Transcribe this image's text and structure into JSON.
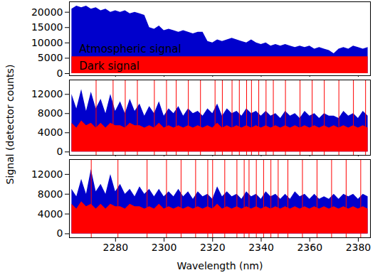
{
  "chart_data": [
    {
      "type": "area",
      "x": [
        2262,
        2264,
        2266,
        2268,
        2270,
        2272,
        2274,
        2276,
        2278,
        2280,
        2282,
        2284,
        2286,
        2288,
        2290,
        2292,
        2294,
        2296,
        2298,
        2300,
        2302,
        2304,
        2306,
        2308,
        2310,
        2312,
        2314,
        2316,
        2318,
        2320,
        2322,
        2324,
        2326,
        2328,
        2330,
        2332,
        2334,
        2336,
        2338,
        2340,
        2342,
        2344,
        2346,
        2348,
        2350,
        2352,
        2354,
        2356,
        2358,
        2360,
        2362,
        2364,
        2366,
        2368,
        2370,
        2372,
        2374,
        2376,
        2378,
        2380,
        2382,
        2384
      ],
      "series": [
        {
          "color": "#0000cc",
          "values": [
            21000,
            22000,
            21500,
            22000,
            21000,
            21500,
            20500,
            21000,
            20000,
            20500,
            20000,
            20500,
            19500,
            20000,
            19500,
            19000,
            15000,
            14500,
            15500,
            14000,
            14500,
            14000,
            13500,
            14000,
            13500,
            13000,
            13500,
            13500,
            10500,
            10000,
            11000,
            10500,
            11000,
            11500,
            11000,
            10500,
            10000,
            11000,
            10000,
            9500,
            10000,
            9000,
            9500,
            9000,
            9500,
            9000,
            8500,
            9000,
            8500,
            9000,
            8000,
            8500,
            8000,
            7500,
            6500,
            8000,
            8500,
            8000,
            9000,
            8500,
            8000,
            8500
          ]
        },
        {
          "color": "#ff0000",
          "values": [
            5500,
            5500,
            5500,
            5500,
            5500,
            5500,
            5500,
            5500,
            5500,
            5500,
            5500,
            5500,
            5500,
            5500,
            5500,
            5500,
            5500,
            5500,
            5500,
            5500,
            5500,
            5500,
            5500,
            5500,
            5500,
            5500,
            5500,
            5500,
            5500,
            5500,
            5500,
            5500,
            5500,
            5500,
            5500,
            5500,
            5500,
            5500,
            5500,
            5500,
            5500,
            5500,
            5500,
            5500,
            5500,
            5500,
            5500,
            5500,
            5500,
            5500,
            5500,
            5500,
            5500,
            5500,
            5500,
            5500,
            5500,
            5500,
            5500,
            5500,
            5500,
            5500
          ]
        }
      ],
      "annotations": [
        {
          "text": "Atmospheric signal",
          "x": 2265,
          "y": 8000
        },
        {
          "text": "Dark signal",
          "x": 2265,
          "y": 2500
        }
      ],
      "xlim": [
        2261,
        2385
      ],
      "xticks": [
        2280,
        2300,
        2320,
        2340,
        2360,
        2380
      ],
      "ylim": [
        -700,
        23400
      ],
      "yticks": [
        0,
        5000,
        10000,
        15000,
        20000
      ],
      "tick_labels": "y"
    },
    {
      "type": "area",
      "x": [
        2262,
        2264,
        2266,
        2268,
        2270,
        2272,
        2274,
        2276,
        2278,
        2280,
        2282,
        2284,
        2286,
        2288,
        2290,
        2292,
        2294,
        2296,
        2298,
        2300,
        2302,
        2304,
        2306,
        2308,
        2310,
        2312,
        2314,
        2316,
        2318,
        2320,
        2322,
        2324,
        2326,
        2328,
        2330,
        2332,
        2334,
        2336,
        2338,
        2340,
        2342,
        2344,
        2346,
        2348,
        2350,
        2352,
        2354,
        2356,
        2358,
        2360,
        2362,
        2364,
        2366,
        2368,
        2370,
        2372,
        2374,
        2376,
        2378,
        2380,
        2382,
        2384
      ],
      "series": [
        {
          "color": "#0000cc",
          "values": [
            12000,
            9000,
            13000,
            8500,
            12500,
            9000,
            11000,
            8000,
            12000,
            8500,
            10500,
            8000,
            11000,
            8500,
            10000,
            7500,
            9500,
            8000,
            10500,
            7500,
            9000,
            8000,
            9500,
            7500,
            9000,
            8000,
            8500,
            7500,
            9000,
            8000,
            10000,
            7500,
            9000,
            8000,
            8500,
            7500,
            9000,
            8000,
            8500,
            7500,
            8500,
            7500,
            8000,
            7000,
            8500,
            7500,
            8000,
            7000,
            8500,
            7500,
            8000,
            7000,
            8000,
            7500,
            7500,
            7000,
            8500,
            7500,
            8000,
            7000,
            8500,
            7500
          ]
        },
        {
          "color": "#ff0000",
          "values": [
            6000,
            5000,
            6500,
            5500,
            6000,
            5000,
            6000,
            5000,
            6000,
            5500,
            5500,
            5000,
            6000,
            5500,
            5500,
            5000,
            5500,
            5000,
            6000,
            5000,
            5500,
            5000,
            5500,
            5000,
            5500,
            5000,
            5500,
            5000,
            5500,
            5000,
            6000,
            5000,
            5500,
            5000,
            5500,
            5000,
            5500,
            5000,
            5500,
            5000,
            5500,
            5000,
            5500,
            5000,
            5500,
            5000,
            5500,
            5000,
            5500,
            5000,
            5500,
            5000,
            5500,
            5000,
            5500,
            5000,
            5500,
            5000,
            5500,
            5000,
            5500,
            5000
          ]
        }
      ],
      "vlines": [
        2272,
        2279,
        2284,
        2289,
        2296,
        2301,
        2305,
        2310,
        2315,
        2321,
        2324,
        2328,
        2331,
        2334,
        2336,
        2339,
        2342,
        2345,
        2350,
        2356,
        2361,
        2366,
        2372,
        2378,
        2383
      ],
      "vline_color": "#ff0000",
      "ylabel": "Signal (detector counts)",
      "xlim": [
        2261,
        2385
      ],
      "xticks": [
        2280,
        2300,
        2320,
        2340,
        2360,
        2380
      ],
      "ylim": [
        -700,
        15000
      ],
      "yticks": [
        0,
        4000,
        8000,
        12000
      ],
      "tick_labels": "y"
    },
    {
      "type": "area",
      "x": [
        2262,
        2264,
        2266,
        2268,
        2270,
        2272,
        2274,
        2276,
        2278,
        2280,
        2282,
        2284,
        2286,
        2288,
        2290,
        2292,
        2294,
        2296,
        2298,
        2300,
        2302,
        2304,
        2306,
        2308,
        2310,
        2312,
        2314,
        2316,
        2318,
        2320,
        2322,
        2324,
        2326,
        2328,
        2330,
        2332,
        2334,
        2336,
        2338,
        2340,
        2342,
        2344,
        2346,
        2348,
        2350,
        2352,
        2354,
        2356,
        2358,
        2360,
        2362,
        2364,
        2366,
        2368,
        2370,
        2372,
        2374,
        2376,
        2378,
        2380,
        2382,
        2384
      ],
      "series": [
        {
          "color": "#0000cc",
          "values": [
            9000,
            7500,
            11000,
            8000,
            13000,
            8500,
            10000,
            8000,
            12000,
            8500,
            10000,
            8000,
            9000,
            7500,
            9500,
            8000,
            9000,
            7500,
            9000,
            7500,
            8500,
            7500,
            9000,
            7500,
            8500,
            7000,
            8500,
            7500,
            8000,
            7000,
            9500,
            7500,
            8500,
            7500,
            8000,
            7000,
            8500,
            7500,
            8000,
            7000,
            8500,
            7500,
            8000,
            7000,
            8000,
            7000,
            8500,
            7500,
            8000,
            7000,
            8000,
            7000,
            7500,
            7000,
            8000,
            7000,
            8000,
            7500,
            8000,
            7000,
            8000,
            7500
          ]
        },
        {
          "color": "#ff0000",
          "values": [
            6000,
            5000,
            6500,
            5500,
            6000,
            5000,
            6000,
            5000,
            6000,
            5500,
            5500,
            5000,
            6000,
            5500,
            5500,
            5000,
            5500,
            5000,
            6000,
            5000,
            5500,
            5000,
            5500,
            5000,
            5500,
            5000,
            5500,
            5000,
            5500,
            5000,
            6000,
            5000,
            5500,
            5000,
            5500,
            5000,
            5500,
            5000,
            5500,
            5000,
            5500,
            5000,
            5500,
            5000,
            5500,
            5000,
            5500,
            5000,
            5500,
            5000,
            5500,
            5000,
            5500,
            5000,
            5500,
            5000,
            5500,
            5000,
            5500,
            5000,
            5500,
            5000
          ]
        }
      ],
      "vlines": [
        2270,
        2281,
        2293,
        2301,
        2307,
        2313,
        2318,
        2320,
        2325,
        2330,
        2333,
        2335,
        2338,
        2341,
        2344,
        2347,
        2351,
        2357,
        2363,
        2369,
        2375,
        2381
      ],
      "vline_color": "#ff0000",
      "xlabel": "Wavelength (nm)",
      "xlim": [
        2261,
        2385
      ],
      "xticks": [
        2280,
        2300,
        2320,
        2340,
        2360,
        2380
      ],
      "ylim": [
        -800,
        15000
      ],
      "yticks": [
        0,
        4000,
        8000,
        12000
      ]
    }
  ]
}
